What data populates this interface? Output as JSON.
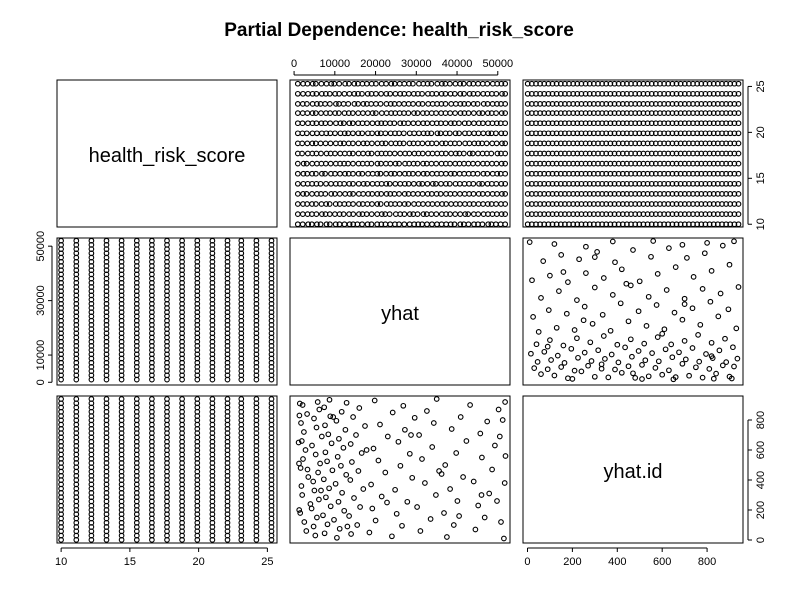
{
  "chart_data": {
    "type": "scatter",
    "subtype": "pairs-matrix",
    "title": "Partial Dependence: health_risk_score",
    "variables": [
      "health_risk_score",
      "yhat",
      "yhat.id"
    ],
    "diagonal_labels": [
      "health_risk_score",
      "yhat",
      "yhat.id"
    ],
    "axes": {
      "health_risk_score": {
        "range": [
          9.7,
          25.7
        ],
        "ticks": [
          10,
          15,
          20,
          25
        ],
        "tick_labels": [
          "10",
          "15",
          "20",
          "25"
        ]
      },
      "yhat": {
        "range": [
          -1000,
          53000
        ],
        "ticks_top": [
          0,
          10000,
          20000,
          30000,
          40000,
          50000
        ],
        "tick_labels_top": [
          "0",
          "10000",
          "20000",
          "30000",
          "40000",
          "50000"
        ],
        "ticks_left": [
          0,
          10000,
          30000,
          50000
        ],
        "tick_labels_left": [
          "0",
          "10000",
          "30000",
          "50000"
        ]
      },
      "yhat.id": {
        "range": [
          -20,
          960
        ],
        "ticks": [
          0,
          200,
          400,
          600,
          800
        ],
        "tick_labels": [
          "0",
          "200",
          "400",
          "600",
          "800"
        ]
      }
    },
    "health_risk_score_grid": [
      10.0,
      11.1,
      12.2,
      13.3,
      14.4,
      15.5,
      16.6,
      17.7,
      18.8,
      19.9,
      21.0,
      22.1,
      23.1,
      24.2,
      25.3
    ],
    "yhat_range": [
      1000,
      52000
    ],
    "yhat_id_range": [
      1,
      940
    ],
    "scatter_yhat_vs_id": [
      [
        60,
        3000
      ],
      [
        120,
        2500
      ],
      [
        180,
        1500
      ],
      [
        240,
        4000
      ],
      [
        300,
        2000
      ],
      [
        360,
        1800
      ],
      [
        420,
        3500
      ],
      [
        480,
        1600
      ],
      [
        540,
        2200
      ],
      [
        600,
        2800
      ],
      [
        660,
        1900
      ],
      [
        720,
        2400
      ],
      [
        780,
        1700
      ],
      [
        840,
        3200
      ],
      [
        900,
        2100
      ],
      [
        30,
        5200
      ],
      [
        90,
        4800
      ],
      [
        150,
        5600
      ],
      [
        210,
        4300
      ],
      [
        270,
        6100
      ],
      [
        330,
        5000
      ],
      [
        390,
        4700
      ],
      [
        450,
        5900
      ],
      [
        510,
        6400
      ],
      [
        570,
        5300
      ],
      [
        630,
        4400
      ],
      [
        690,
        6800
      ],
      [
        750,
        5500
      ],
      [
        810,
        4900
      ],
      [
        870,
        6200
      ],
      [
        920,
        5800
      ],
      [
        45,
        7500
      ],
      [
        105,
        8200
      ],
      [
        165,
        7100
      ],
      [
        225,
        9000
      ],
      [
        285,
        7800
      ],
      [
        345,
        8600
      ],
      [
        405,
        7300
      ],
      [
        465,
        9400
      ],
      [
        525,
        8100
      ],
      [
        585,
        7700
      ],
      [
        645,
        9200
      ],
      [
        705,
        8400
      ],
      [
        765,
        7600
      ],
      [
        825,
        8900
      ],
      [
        885,
        7400
      ],
      [
        935,
        8700
      ],
      [
        15,
        10500
      ],
      [
        75,
        11200
      ],
      [
        135,
        9800
      ],
      [
        195,
        12300
      ],
      [
        255,
        10900
      ],
      [
        315,
        11800
      ],
      [
        375,
        10200
      ],
      [
        435,
        12800
      ],
      [
        495,
        11500
      ],
      [
        555,
        10700
      ],
      [
        615,
        12100
      ],
      [
        675,
        11000
      ],
      [
        735,
        12600
      ],
      [
        795,
        10400
      ],
      [
        855,
        11700
      ],
      [
        915,
        12900
      ],
      [
        40,
        14000
      ],
      [
        100,
        15500
      ],
      [
        160,
        13500
      ],
      [
        220,
        16200
      ],
      [
        280,
        14700
      ],
      [
        340,
        17000
      ],
      [
        400,
        13800
      ],
      [
        460,
        15800
      ],
      [
        520,
        14200
      ],
      [
        580,
        16600
      ],
      [
        640,
        13900
      ],
      [
        700,
        15200
      ],
      [
        760,
        17400
      ],
      [
        820,
        14500
      ],
      [
        880,
        16000
      ],
      [
        50,
        18500
      ],
      [
        130,
        20000
      ],
      [
        210,
        19200
      ],
      [
        290,
        21500
      ],
      [
        370,
        18900
      ],
      [
        450,
        22400
      ],
      [
        530,
        20700
      ],
      [
        610,
        19500
      ],
      [
        690,
        23000
      ],
      [
        770,
        21100
      ],
      [
        850,
        24200
      ],
      [
        930,
        19800
      ],
      [
        25,
        24000
      ],
      [
        95,
        26500
      ],
      [
        175,
        25200
      ],
      [
        255,
        27800
      ],
      [
        335,
        24800
      ],
      [
        415,
        29000
      ],
      [
        495,
        26100
      ],
      [
        575,
        28400
      ],
      [
        655,
        25600
      ],
      [
        735,
        27200
      ],
      [
        815,
        29600
      ],
      [
        895,
        26800
      ],
      [
        60,
        31000
      ],
      [
        140,
        33500
      ],
      [
        220,
        30200
      ],
      [
        300,
        34800
      ],
      [
        380,
        32100
      ],
      [
        460,
        35600
      ],
      [
        540,
        31400
      ],
      [
        620,
        33900
      ],
      [
        700,
        30700
      ],
      [
        780,
        34300
      ],
      [
        860,
        32600
      ],
      [
        940,
        35000
      ],
      [
        20,
        37500
      ],
      [
        100,
        39200
      ],
      [
        180,
        36800
      ],
      [
        260,
        40100
      ],
      [
        340,
        38300
      ],
      [
        420,
        41500
      ],
      [
        500,
        37100
      ],
      [
        580,
        39800
      ],
      [
        660,
        42300
      ],
      [
        740,
        38700
      ],
      [
        820,
        40900
      ],
      [
        900,
        43200
      ],
      [
        70,
        44500
      ],
      [
        150,
        46800
      ],
      [
        230,
        45200
      ],
      [
        310,
        47900
      ],
      [
        390,
        44100
      ],
      [
        470,
        48600
      ],
      [
        550,
        46100
      ],
      [
        630,
        49300
      ],
      [
        710,
        45700
      ],
      [
        790,
        47400
      ],
      [
        870,
        50200
      ],
      [
        10,
        51500
      ],
      [
        120,
        50800
      ],
      [
        260,
        49800
      ],
      [
        380,
        51700
      ],
      [
        560,
        51900
      ],
      [
        690,
        50500
      ],
      [
        800,
        51200
      ],
      [
        920,
        51800
      ],
      [
        300,
        46000
      ],
      [
        160,
        40500
      ],
      [
        440,
        36200
      ],
      [
        700,
        28700
      ],
      [
        250,
        22800
      ],
      [
        600,
        17800
      ],
      [
        90,
        13100
      ],
      [
        820,
        9600
      ],
      [
        330,
        6600
      ],
      [
        470,
        3300
      ],
      [
        510,
        1200
      ],
      [
        650,
        1100
      ],
      [
        830,
        1300
      ],
      [
        910,
        1400
      ],
      [
        200,
        1250
      ]
    ]
  }
}
